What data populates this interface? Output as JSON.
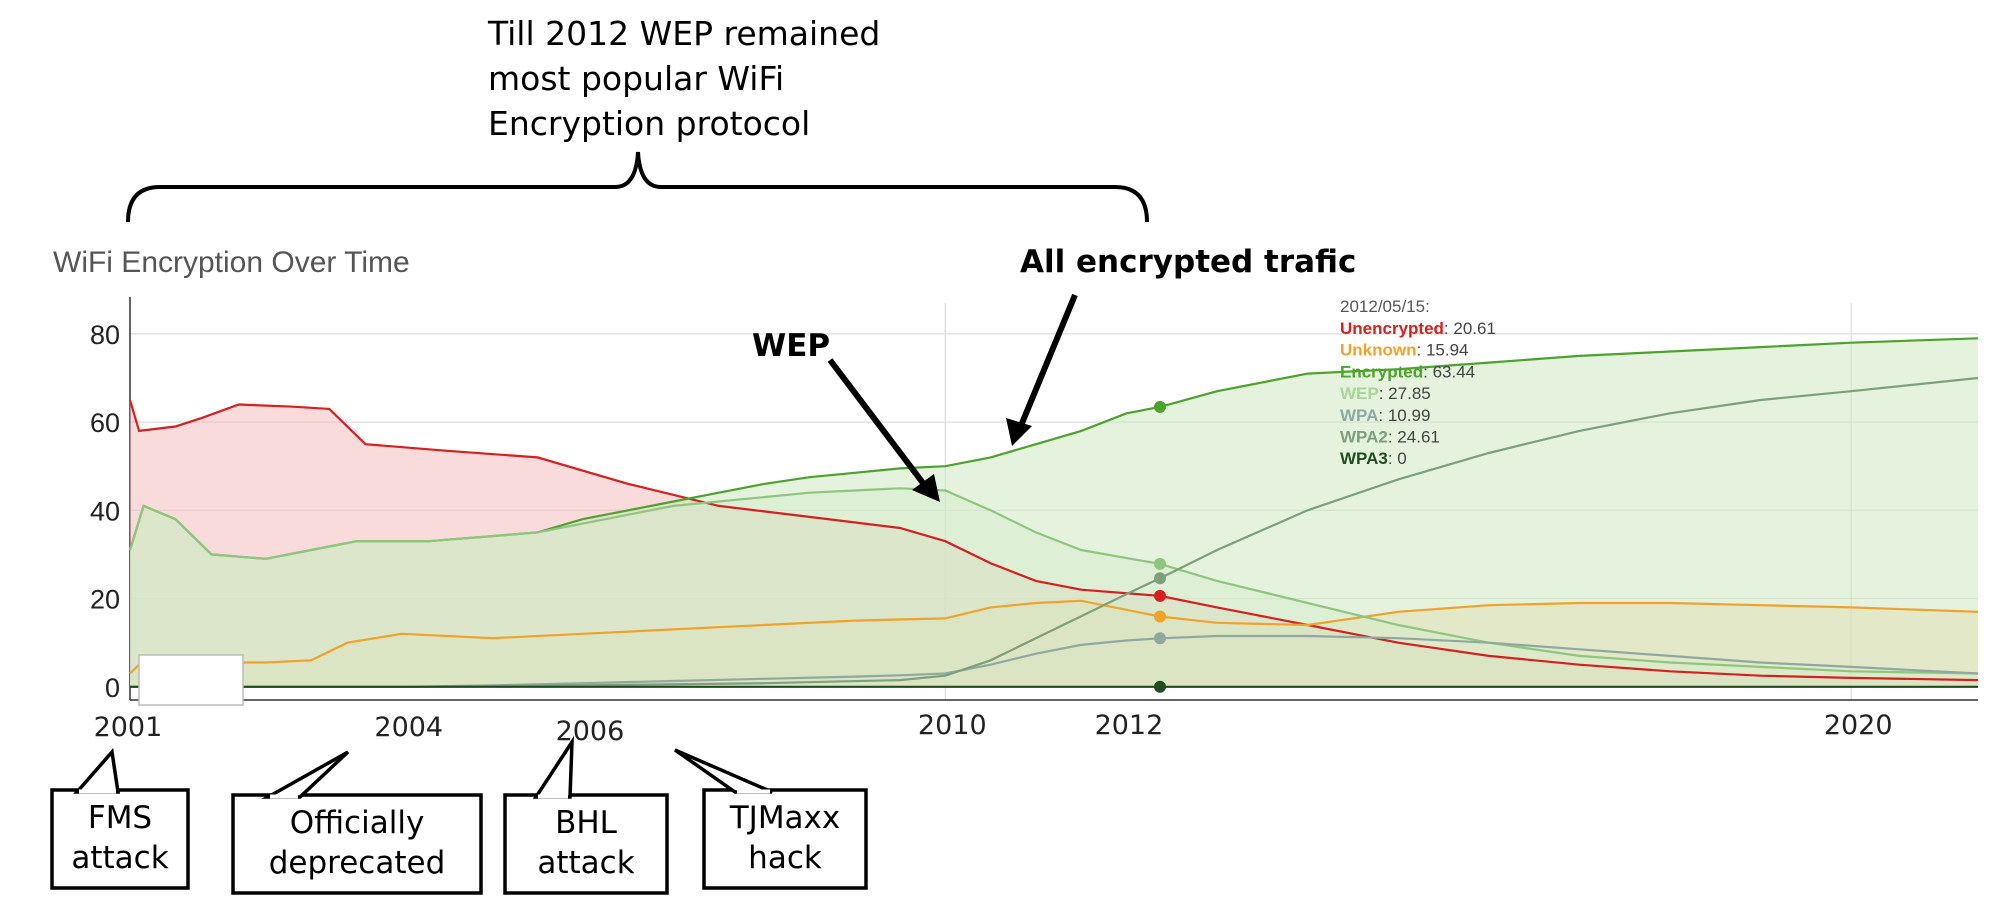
{
  "header_note": {
    "lines": [
      "Till 2012 WEP remained",
      "most popular WiFi",
      "Encryption protocol"
    ]
  },
  "chart_title": "WiFi Encryption Over Time",
  "callouts": {
    "all_encrypted": "All encrypted trafic",
    "wep": "WEP"
  },
  "events": [
    {
      "lines": [
        "FMS",
        "attack"
      ],
      "year": 2001.2
    },
    {
      "lines": [
        "Officially",
        "deprecated"
      ],
      "year": 2004.1
    },
    {
      "lines": [
        "BHL",
        "attack"
      ],
      "year": 2007.0
    },
    {
      "lines": [
        "TJMaxx",
        "hack"
      ],
      "year": 2007.7
    }
  ],
  "tooltip": {
    "date": "2012/05/15:",
    "rows": [
      {
        "name": "Unencrypted",
        "value": "20.61",
        "color": "#d62020"
      },
      {
        "name": "Unknown",
        "value": "15.94",
        "color": "#f0a22b"
      },
      {
        "name": "Encrypted",
        "value": "63.44",
        "color": "#4ca32b"
      },
      {
        "name": "WEP",
        "value": "27.85",
        "color": "#a9d59a"
      },
      {
        "name": "WPA",
        "value": "10.99",
        "color": "#8fa8a0"
      },
      {
        "name": "WPA2",
        "value": "24.61",
        "color": "#7d9f7a"
      },
      {
        "name": "WPA3",
        "value": "0",
        "color": "#1f4d1f"
      }
    ]
  },
  "chart_data": {
    "type": "area",
    "title": "WiFi Encryption Over Time",
    "xlabel": "",
    "ylabel": "",
    "xlim": [
      2001.0,
      2021.4
    ],
    "ylim": [
      -3,
      87
    ],
    "x_ticks": [
      2001,
      2004,
      2006,
      2010,
      2012,
      2020
    ],
    "y_ticks": [
      0,
      20,
      40,
      60,
      80
    ],
    "grid": true,
    "hover_x": 2012.37,
    "series": [
      {
        "name": "Unencrypted",
        "color": "#d62020",
        "fill": "#f5b8b8",
        "x": [
          2001.0,
          2001.1,
          2001.5,
          2001.8,
          2002.2,
          2002.8,
          2003.2,
          2003.6,
          2004.5,
          2005.5,
          2006.5,
          2007.5,
          2008.5,
          2009.5,
          2010.0,
          2010.5,
          2011.0,
          2011.5,
          2012.37,
          2013.0,
          2014.0,
          2015.0,
          2016.0,
          2017.0,
          2018.0,
          2019.0,
          2020.0,
          2021.4
        ],
        "y": [
          65,
          58,
          59,
          61,
          64,
          63.5,
          63,
          55,
          53.5,
          52,
          46,
          41,
          38.5,
          36,
          33,
          28,
          24,
          22,
          20.61,
          18,
          14,
          10,
          7,
          5,
          3.5,
          2.5,
          2,
          1.5
        ]
      },
      {
        "name": "Unknown",
        "color": "#f0a22b",
        "fill": "#f8d7a8",
        "x": [
          2001.0,
          2001.15,
          2001.3,
          2002.5,
          2003.0,
          2003.4,
          2004.0,
          2005.0,
          2006.0,
          2007.0,
          2008.0,
          2009.0,
          2010.0,
          2010.5,
          2011.0,
          2011.5,
          2012.37,
          2013.0,
          2014.0,
          2015.0,
          2016.0,
          2017.0,
          2018.0,
          2019.0,
          2020.0,
          2021.4
        ],
        "y": [
          3,
          6,
          5.5,
          5.5,
          6,
          10,
          12,
          11,
          12,
          13,
          14,
          15,
          15.5,
          18,
          19,
          19.5,
          15.94,
          14.5,
          14,
          17,
          18.5,
          19,
          19,
          18.5,
          18,
          17
        ]
      },
      {
        "name": "Encrypted",
        "color": "#4ca32b",
        "fill": "#c9e6bd",
        "x": [
          2001.0,
          2001.15,
          2001.5,
          2001.9,
          2002.5,
          2003.0,
          2003.5,
          2004.3,
          2005.5,
          2006.0,
          2006.5,
          2007.0,
          2007.5,
          2008.0,
          2008.5,
          2009.0,
          2009.5,
          2010.0,
          2010.5,
          2011.0,
          2011.5,
          2012.0,
          2012.37,
          2013.0,
          2014.0,
          2015.0,
          2016.0,
          2017.0,
          2018.0,
          2019.0,
          2020.0,
          2021.4
        ],
        "y": [
          31,
          41,
          38,
          30,
          29,
          31,
          33,
          33,
          35,
          38,
          40,
          42,
          44,
          46,
          47.5,
          48.5,
          49.5,
          50,
          52,
          55,
          58,
          62,
          63.44,
          67,
          71,
          72,
          73.5,
          75,
          76,
          77,
          78,
          79
        ]
      },
      {
        "name": "WEP",
        "color": "#8fc67f",
        "fill": "#d6ebc9",
        "x": [
          2001.0,
          2001.15,
          2001.5,
          2001.9,
          2002.5,
          2003.0,
          2003.5,
          2004.3,
          2005.5,
          2006.0,
          2006.5,
          2007.0,
          2007.5,
          2008.0,
          2008.5,
          2009.0,
          2009.5,
          2010.0,
          2010.5,
          2011.0,
          2011.5,
          2012.37,
          2013.0,
          2014.0,
          2015.0,
          2016.0,
          2017.0,
          2018.0,
          2019.0,
          2020.0,
          2021.4
        ],
        "y": [
          31,
          41,
          38,
          30,
          29,
          31,
          33,
          33,
          35,
          37,
          39,
          41,
          42,
          43,
          44,
          44.5,
          45,
          44.5,
          40,
          35,
          31,
          27.85,
          24,
          19,
          14,
          10,
          7,
          5.5,
          4.5,
          3.5,
          3
        ]
      },
      {
        "name": "WPA",
        "color": "#8fa8a0",
        "fill": "none",
        "x": [
          2001.0,
          2004.0,
          2005.0,
          2006.0,
          2007.0,
          2008.0,
          2009.0,
          2009.5,
          2010.0,
          2010.5,
          2011.0,
          2011.5,
          2012.0,
          2012.37,
          2013.0,
          2014.0,
          2015.0,
          2016.0,
          2017.0,
          2018.0,
          2019.0,
          2020.0,
          2021.4
        ],
        "y": [
          0,
          0,
          0.3,
          0.8,
          1.3,
          1.8,
          2.3,
          2.6,
          3,
          5,
          7.5,
          9.5,
          10.5,
          10.99,
          11.5,
          11.5,
          11,
          10,
          8.5,
          7,
          5.5,
          4.5,
          3
        ]
      },
      {
        "name": "WPA2",
        "color": "#7d9f7a",
        "fill": "none",
        "x": [
          2001.0,
          2004.0,
          2006.0,
          2008.0,
          2009.5,
          2010.0,
          2010.5,
          2011.0,
          2011.5,
          2012.0,
          2012.37,
          2013.0,
          2014.0,
          2015.0,
          2016.0,
          2017.0,
          2018.0,
          2019.0,
          2020.0,
          2021.4
        ],
        "y": [
          0,
          0,
          0.3,
          0.8,
          1.5,
          2.5,
          6,
          11,
          16,
          21,
          24.61,
          31,
          40,
          47,
          53,
          58,
          62,
          65,
          67,
          70
        ]
      },
      {
        "name": "WPA3",
        "color": "#1f4d1f",
        "fill": "none",
        "x": [
          2001.0,
          2012.37,
          2021.4
        ],
        "y": [
          0,
          0,
          0
        ]
      }
    ]
  }
}
